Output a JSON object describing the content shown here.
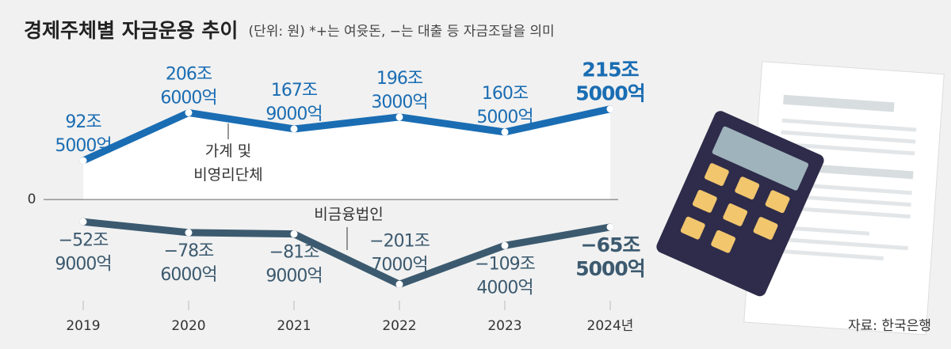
{
  "chart_data": {
    "type": "line",
    "title": "경제주체별 자금운용 추이",
    "subtitle": "(단위: 원)  *+는 여윳돈, −는 대출 등 자금조달을 의미",
    "source": "자료: 한국은행",
    "categories": [
      "2019",
      "2020",
      "2021",
      "2022",
      "2023",
      "2024년"
    ],
    "series": [
      {
        "name": "가계 및\n비영리단체",
        "color": "#1a6db3",
        "values": [
          92.5,
          206.6,
          167.9,
          196.3,
          160.5,
          215.5
        ],
        "value_labels": [
          "92조\n5000억",
          "206조\n6000억",
          "167조\n9000억",
          "196조\n3000억",
          "160조\n5000억",
          "215조\n5000억"
        ]
      },
      {
        "name": "비금융법인",
        "color": "#3c5a6f",
        "values": [
          -52.9,
          -78.6,
          -81.9,
          -201.7,
          -109.4,
          -65.5
        ],
        "value_labels": [
          "−52조\n9000억",
          "−78조\n6000억",
          "−81조\n9000억",
          "−201조\n7000억",
          "−109조\n4000억",
          "−65조\n5000억"
        ]
      }
    ],
    "ylim": [
      -220,
      230
    ],
    "yticks": [
      0
    ],
    "grid": true
  }
}
